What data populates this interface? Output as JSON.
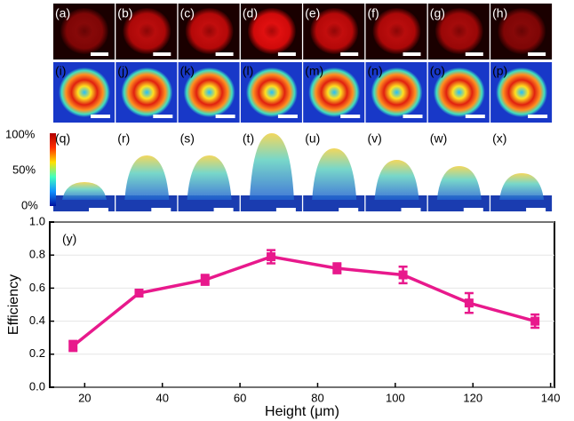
{
  "panels": [
    "(a)",
    "(b)",
    "(c)",
    "(d)",
    "(e)",
    "(f)",
    "(g)",
    "(h)",
    "(i)",
    "(j)",
    "(k)",
    "(l)",
    "(m)",
    "(n)",
    "(o)",
    "(p)",
    "(q)",
    "(r)",
    "(s)",
    "(t)",
    "(u)",
    "(v)",
    "(w)",
    "(x)"
  ],
  "colorbar": {
    "ticks": [
      "100%",
      "50%",
      "0%"
    ]
  },
  "chart_data": {
    "type": "line",
    "annotation": "(y)",
    "x_label": "Height (μm)",
    "y_label": "Efficiency",
    "x": [
      17,
      34,
      51,
      68,
      85,
      102,
      119,
      136
    ],
    "values": [
      0.25,
      0.57,
      0.65,
      0.79,
      0.72,
      0.68,
      0.51,
      0.4
    ],
    "errors": [
      0.03,
      0.01,
      0.03,
      0.04,
      0.03,
      0.05,
      0.06,
      0.04
    ],
    "color": "#e8198c",
    "xlim": [
      11,
      141
    ],
    "xticks": [
      20,
      40,
      60,
      80,
      100,
      120,
      140
    ],
    "ylim": [
      0,
      1
    ],
    "yticks": [
      {
        "value": 0,
        "label": "0.0"
      },
      0.2,
      0.4,
      0.6,
      0.8,
      {
        "value": 1,
        "label": "1.0"
      }
    ],
    "grid": true
  }
}
